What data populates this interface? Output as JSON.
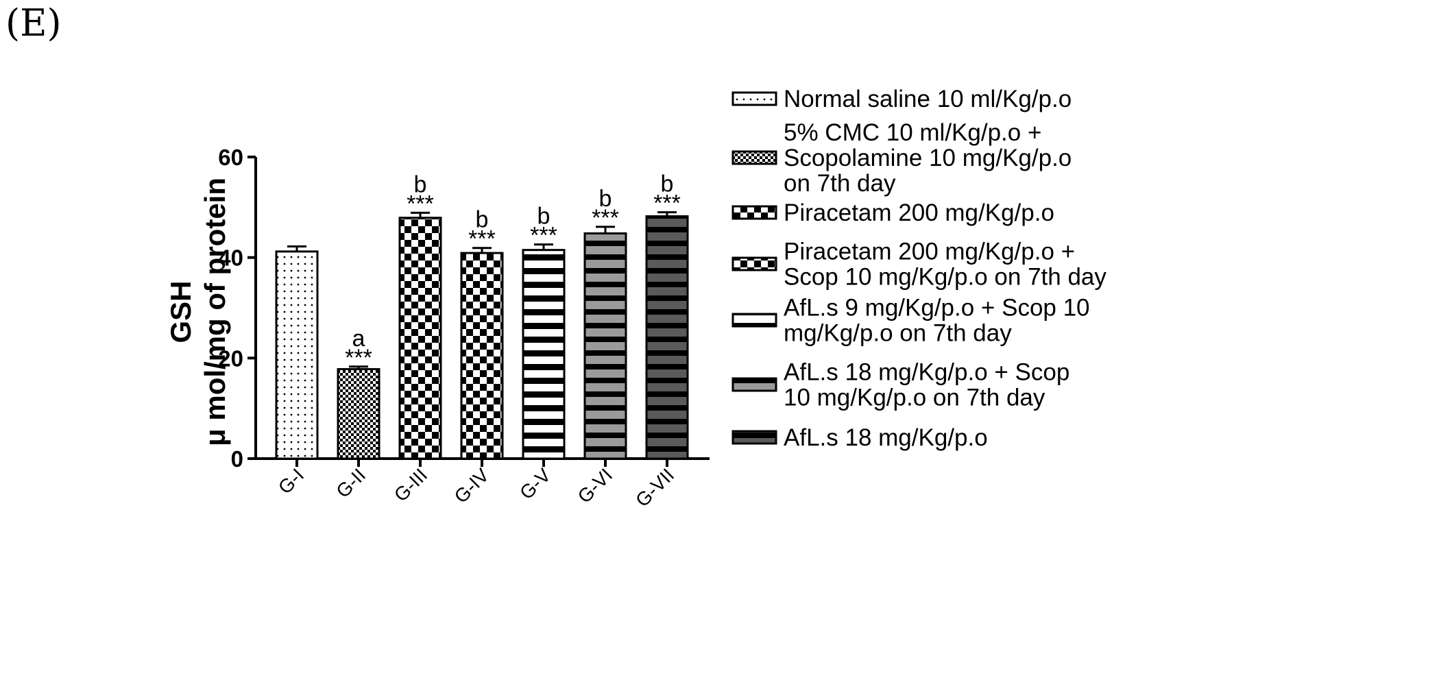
{
  "panel_label": "(E)",
  "chart_data": {
    "type": "bar",
    "ylabel_line1": "GSH",
    "ylabel_line2": "μ mol/mg of protein",
    "ylim": [
      0,
      60
    ],
    "yticks": [
      "0",
      "20",
      "40",
      "60"
    ],
    "categories": [
      "G-I",
      "G-II",
      "G-III",
      "G-IV",
      "G-V",
      "G-VI",
      "G-VII"
    ],
    "values": [
      41.2,
      17.8,
      47.9,
      40.9,
      41.5,
      44.8,
      48.2
    ],
    "errors": [
      1.0,
      0.5,
      1.0,
      1.0,
      1.1,
      1.3,
      0.8
    ],
    "significance": [
      "",
      "***",
      "***",
      "***",
      "***",
      "***",
      "***"
    ],
    "letters": [
      "",
      "a",
      "b",
      "b",
      "b",
      "b",
      "b"
    ],
    "patterns": [
      "dots",
      "fine-check",
      "checker",
      "checker",
      "h-stripes-white",
      "h-stripes-gray",
      "h-stripes-dark"
    ],
    "legend": [
      {
        "lines": [
          "Normal saline 10 ml/Kg/p.o"
        ]
      },
      {
        "lines": [
          "5% CMC 10 ml/Kg/p.o +",
          "Scopolamine 10 mg/Kg/p.o",
          "on 7th day"
        ]
      },
      {
        "lines": [
          "Piracetam 200 mg/Kg/p.o"
        ]
      },
      {
        "lines": [
          "Piracetam 200 mg/Kg/p.o +",
          "Scop 10 mg/Kg/p.o on 7th day"
        ]
      },
      {
        "lines": [
          "AfL.s 9 mg/Kg/p.o + Scop 10",
          "mg/Kg/p.o on 7th day"
        ]
      },
      {
        "lines": [
          "AfL.s 18 mg/Kg/p.o + Scop",
          "10 mg/Kg/p.o on 7th day"
        ]
      },
      {
        "lines": [
          "AfL.s 18 mg/Kg/p.o"
        ]
      }
    ],
    "legend_placement": "right",
    "grid": false
  }
}
